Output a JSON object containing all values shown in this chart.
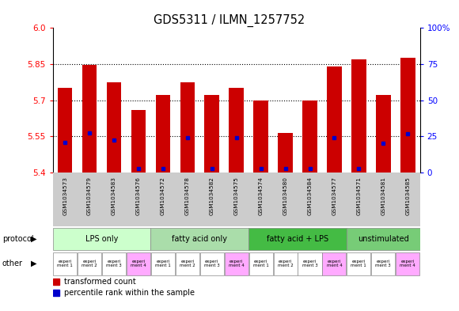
{
  "title": "GDS5311 / ILMN_1257752",
  "samples": [
    "GSM1034573",
    "GSM1034579",
    "GSM1034583",
    "GSM1034576",
    "GSM1034572",
    "GSM1034578",
    "GSM1034582",
    "GSM1034575",
    "GSM1034574",
    "GSM1034580",
    "GSM1034584",
    "GSM1034577",
    "GSM1034571",
    "GSM1034581",
    "GSM1034585"
  ],
  "red_values": [
    5.75,
    5.845,
    5.775,
    5.66,
    5.72,
    5.775,
    5.72,
    5.75,
    5.7,
    5.565,
    5.7,
    5.84,
    5.87,
    5.72,
    5.875
  ],
  "blue_values": [
    5.525,
    5.565,
    5.535,
    5.415,
    5.415,
    5.545,
    5.415,
    5.545,
    5.415,
    5.415,
    5.415,
    5.545,
    5.415,
    5.52,
    5.56
  ],
  "ymin": 5.4,
  "ymax": 6.0,
  "yticks": [
    5.4,
    5.55,
    5.7,
    5.85,
    6.0
  ],
  "y2min": 0,
  "y2max": 100,
  "y2ticks": [
    0,
    25,
    50,
    75,
    100
  ],
  "bar_color": "#cc0000",
  "blue_color": "#0000cc",
  "protocol_groups": [
    {
      "label": "LPS only",
      "count": 4,
      "color": "#ccffcc"
    },
    {
      "label": "fatty acid only",
      "count": 4,
      "color": "#aaddaa"
    },
    {
      "label": "fatty acid + LPS",
      "count": 4,
      "color": "#44bb44"
    },
    {
      "label": "unstimulated",
      "count": 3,
      "color": "#77cc77"
    }
  ],
  "other_labels": [
    "experi\nment 1",
    "experi\nment 2",
    "experi\nment 3",
    "experi\nment 4",
    "experi\nment 1",
    "experi\nment 2",
    "experi\nment 3",
    "experi\nment 4",
    "experi\nment 1",
    "experi\nment 2",
    "experi\nment 3",
    "experi\nment 4",
    "experi\nment 1",
    "experi\nment 3",
    "experi\nment 4"
  ],
  "other_colors": [
    "#ffffff",
    "#ffffff",
    "#ffffff",
    "#ffaaff",
    "#ffffff",
    "#ffffff",
    "#ffffff",
    "#ffaaff",
    "#ffffff",
    "#ffffff",
    "#ffffff",
    "#ffaaff",
    "#ffffff",
    "#ffffff",
    "#ffaaff"
  ],
  "sample_bg": "#cccccc",
  "plot_bg": "#ffffff",
  "fig_bg": "#ffffff"
}
